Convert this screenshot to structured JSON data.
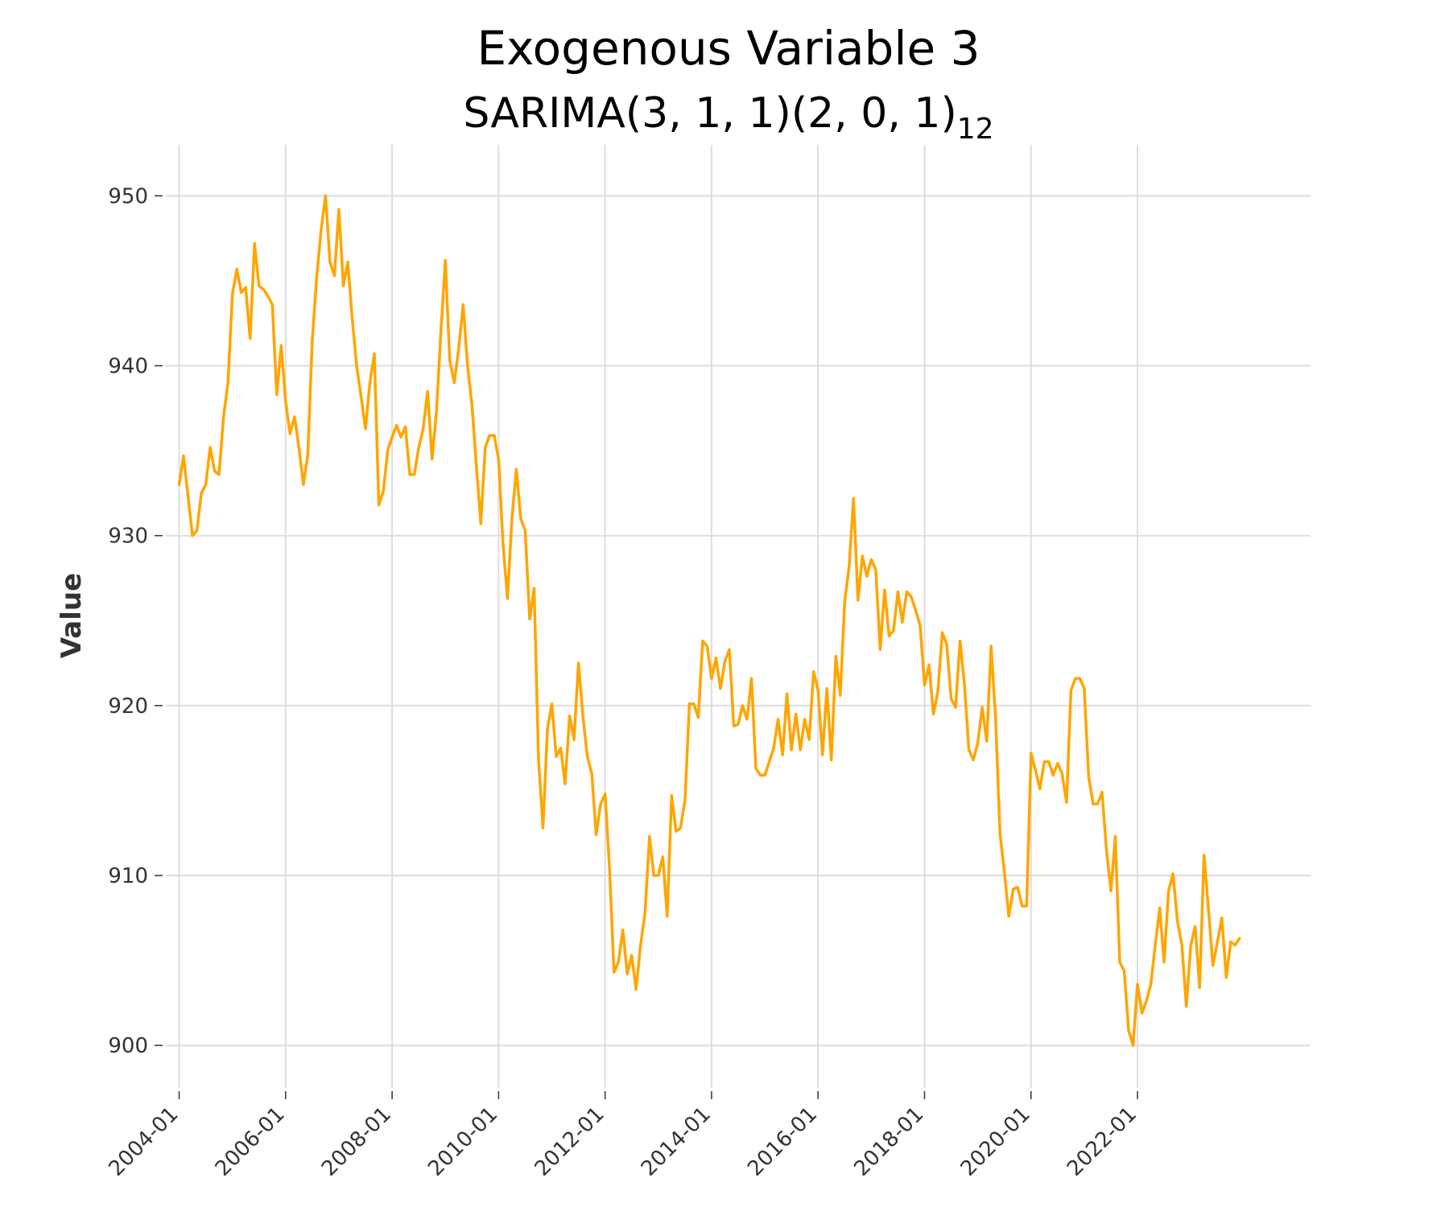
{
  "chart_data": {
    "type": "line",
    "title": "Exogenous Variable 3",
    "subtitle": {
      "main": "SARIMA(3, 1, 1)(2, 0, 1)",
      "subscript": "12"
    },
    "xlabel": "",
    "ylabel": "Value",
    "ylim": [
      897.5,
      953
    ],
    "yticks": [
      900,
      910,
      920,
      930,
      940,
      950
    ],
    "xlim": [
      "2003-10",
      "2025-04"
    ],
    "xticks": [
      "2004-01",
      "2006-01",
      "2008-01",
      "2010-01",
      "2012-01",
      "2014-01",
      "2016-01",
      "2018-01",
      "2020-01",
      "2022-01"
    ],
    "grid": true,
    "legend": "none",
    "series": [
      {
        "color": "#FFA500",
        "x": [
          "2004-01",
          "2004-02",
          "2004-03",
          "2004-04",
          "2004-05",
          "2004-06",
          "2004-07",
          "2004-08",
          "2004-09",
          "2004-10",
          "2004-11",
          "2004-12",
          "2005-01",
          "2005-02",
          "2005-03",
          "2005-04",
          "2005-05",
          "2005-06",
          "2005-07",
          "2005-08",
          "2005-09",
          "2005-10",
          "2005-11",
          "2005-12",
          "2006-01",
          "2006-02",
          "2006-03",
          "2006-04",
          "2006-05",
          "2006-06",
          "2006-07",
          "2006-08",
          "2006-09",
          "2006-10",
          "2006-11",
          "2006-12",
          "2007-01",
          "2007-02",
          "2007-03",
          "2007-04",
          "2007-05",
          "2007-06",
          "2007-07",
          "2007-08",
          "2007-09",
          "2007-10",
          "2007-11",
          "2007-12",
          "2008-01",
          "2008-02",
          "2008-03",
          "2008-04",
          "2008-05",
          "2008-06",
          "2008-07",
          "2008-08",
          "2008-09",
          "2008-10",
          "2008-11",
          "2008-12",
          "2009-01",
          "2009-02",
          "2009-03",
          "2009-04",
          "2009-05",
          "2009-06",
          "2009-07",
          "2009-08",
          "2009-09",
          "2009-10",
          "2009-11",
          "2009-12",
          "2010-01",
          "2010-02",
          "2010-03",
          "2010-04",
          "2010-05",
          "2010-06",
          "2010-07",
          "2010-08",
          "2010-09",
          "2010-10",
          "2010-11",
          "2010-12",
          "2011-01",
          "2011-02",
          "2011-03",
          "2011-04",
          "2011-05",
          "2011-06",
          "2011-07",
          "2011-08",
          "2011-09",
          "2011-10",
          "2011-11",
          "2011-12",
          "2012-01",
          "2012-02",
          "2012-03",
          "2012-04",
          "2012-05",
          "2012-06",
          "2012-07",
          "2012-08",
          "2012-09",
          "2012-10",
          "2012-11",
          "2012-12",
          "2013-01",
          "2013-02",
          "2013-03",
          "2013-04",
          "2013-05",
          "2013-06",
          "2013-07",
          "2013-08",
          "2013-09",
          "2013-10",
          "2013-11",
          "2013-12",
          "2014-01",
          "2014-02",
          "2014-03",
          "2014-04",
          "2014-05",
          "2014-06",
          "2014-07",
          "2014-08",
          "2014-09",
          "2014-10",
          "2014-11",
          "2014-12",
          "2015-01",
          "2015-02",
          "2015-03",
          "2015-04",
          "2015-05",
          "2015-06",
          "2015-07",
          "2015-08",
          "2015-09",
          "2015-10",
          "2015-11",
          "2015-12",
          "2016-01",
          "2016-02",
          "2016-03",
          "2016-04",
          "2016-05",
          "2016-06",
          "2016-07",
          "2016-08",
          "2016-09",
          "2016-10",
          "2016-11",
          "2016-12",
          "2017-01",
          "2017-02",
          "2017-03",
          "2017-04",
          "2017-05",
          "2017-06",
          "2017-07",
          "2017-08",
          "2017-09",
          "2017-10",
          "2017-11",
          "2017-12",
          "2018-01",
          "2018-02",
          "2018-03",
          "2018-04",
          "2018-05",
          "2018-06",
          "2018-07",
          "2018-08",
          "2018-09",
          "2018-10",
          "2018-11",
          "2018-12",
          "2019-01",
          "2019-02",
          "2019-03",
          "2019-04",
          "2019-05",
          "2019-06",
          "2019-07",
          "2019-08",
          "2019-09",
          "2019-10",
          "2019-11",
          "2019-12",
          "2020-01",
          "2020-02",
          "2020-03",
          "2020-04",
          "2020-05",
          "2020-06",
          "2020-07",
          "2020-08",
          "2020-09",
          "2020-10",
          "2020-11",
          "2020-12",
          "2021-01",
          "2021-02",
          "2021-03",
          "2021-04",
          "2021-05",
          "2021-06",
          "2021-07",
          "2021-08",
          "2021-09",
          "2021-10",
          "2021-11",
          "2021-12",
          "2022-01",
          "2022-02",
          "2022-03",
          "2022-04",
          "2022-05",
          "2022-06",
          "2022-07",
          "2022-08",
          "2022-09",
          "2022-10",
          "2022-11",
          "2022-12",
          "2023-01",
          "2023-02",
          "2023-03",
          "2023-04",
          "2023-05",
          "2023-06",
          "2023-07",
          "2023-08",
          "2023-09",
          "2023-10",
          "2023-11",
          "2023-12"
        ],
        "y": [
          933.0,
          934.7,
          932.3,
          930.0,
          930.3,
          932.5,
          933.0,
          935.2,
          933.8,
          933.6,
          937.0,
          939.0,
          944.2,
          945.7,
          944.3,
          944.6,
          941.6,
          947.2,
          944.7,
          944.5,
          944.1,
          943.6,
          938.3,
          941.2,
          937.9,
          936.0,
          937.0,
          935.2,
          933.0,
          934.8,
          941.5,
          945.2,
          948.0,
          950.0,
          946.1,
          945.3,
          949.2,
          944.7,
          946.1,
          942.8,
          940.0,
          938.2,
          936.3,
          939.0,
          940.7,
          931.8,
          932.6,
          935.0,
          935.8,
          936.5,
          935.8,
          936.4,
          933.6,
          933.6,
          935.2,
          936.3,
          938.5,
          934.5,
          937.3,
          942.0,
          946.2,
          940.3,
          939.0,
          941.0,
          943.6,
          940.0,
          937.7,
          934.1,
          930.7,
          935.2,
          935.9,
          935.9,
          934.5,
          929.5,
          926.3,
          931.0,
          933.9,
          931.0,
          930.3,
          925.1,
          926.9,
          916.8,
          912.8,
          918.6,
          920.1,
          917.0,
          917.5,
          915.4,
          919.4,
          918.0,
          922.5,
          919.4,
          917.0,
          916.0,
          912.4,
          914.2,
          914.8,
          910.4,
          904.3,
          904.9,
          906.8,
          904.2,
          905.3,
          903.3,
          905.9,
          907.8,
          912.3,
          910.0,
          910.0,
          911.1,
          907.6,
          914.7,
          912.6,
          912.8,
          914.4,
          920.1,
          920.1,
          919.3,
          923.8,
          923.5,
          921.6,
          922.8,
          921.0,
          922.6,
          923.3,
          918.8,
          918.9,
          920.0,
          919.2,
          921.6,
          916.3,
          915.9,
          915.9,
          916.7,
          917.5,
          919.2,
          917.1,
          920.7,
          917.4,
          919.5,
          917.4,
          919.2,
          918.0,
          922.0,
          920.9,
          917.1,
          921.0,
          916.8,
          922.9,
          920.6,
          926.1,
          928.2,
          932.2,
          926.2,
          928.8,
          927.6,
          928.6,
          928.0,
          923.3,
          926.8,
          924.1,
          924.4,
          926.7,
          924.9,
          926.7,
          926.4,
          925.6,
          924.7,
          921.2,
          922.4,
          919.5,
          920.8,
          924.3,
          923.6,
          920.4,
          919.9,
          923.8,
          921.2,
          917.4,
          916.8,
          917.8,
          919.9,
          917.9,
          923.5,
          919.3,
          912.5,
          910.2,
          907.6,
          909.2,
          909.3,
          908.2,
          908.2,
          917.2,
          916.2,
          915.1,
          916.7,
          916.7,
          915.9,
          916.6,
          916.0,
          914.3,
          920.9,
          921.6,
          921.6,
          921.0,
          915.8,
          914.2,
          914.2,
          914.9,
          911.5,
          909.1,
          912.3,
          904.9,
          904.4,
          900.9,
          900.0,
          903.6,
          901.9,
          902.6,
          903.6,
          905.9,
          908.1,
          904.9,
          909.1,
          910.1,
          907.3,
          905.9,
          902.3,
          905.9,
          907.0,
          903.4,
          911.2,
          908.0,
          904.7,
          906.1,
          907.5,
          904.0,
          906.1,
          905.9,
          906.3
        ]
      }
    ]
  }
}
